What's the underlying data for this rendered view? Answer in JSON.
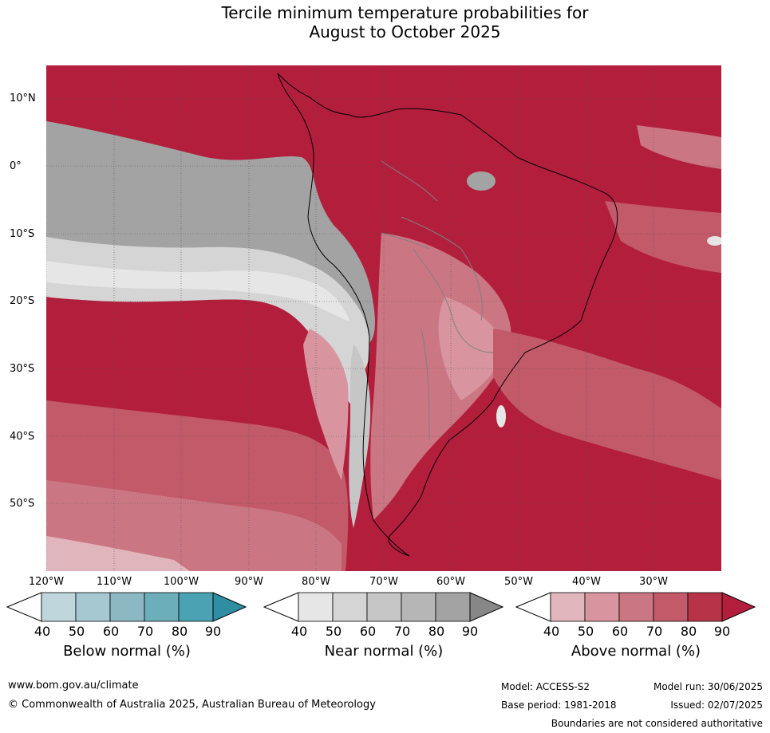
{
  "title_line1": "Tercile minimum temperature probabilities for",
  "title_line2": "August to October 2025",
  "map": {
    "lat_labels": [
      "10°N",
      "0°",
      "10°S",
      "20°S",
      "30°S",
      "40°S",
      "50°S"
    ],
    "lon_labels": [
      "120°W",
      "110°W",
      "100°W",
      "90°W",
      "80°W",
      "70°W",
      "60°W",
      "50°W",
      "40°W",
      "30°W"
    ],
    "legend_colors": {
      "below": [
        "#bed6dc",
        "#a6c8d0",
        "#8cb8c4",
        "#6daebb",
        "#4aa2b2",
        "#2e8fa3"
      ],
      "near": [
        "#e6e6e6",
        "#d5d5d5",
        "#c6c6c6",
        "#b6b6b6",
        "#a3a3a3",
        "#878787"
      ],
      "above": [
        "#e0b6bc",
        "#d8959f",
        "#cb7683",
        "#c25a6a",
        "#b73448",
        "#b31e3c"
      ]
    }
  },
  "colorbars": [
    {
      "key": "below",
      "title": "Below normal (%)",
      "ticks": [
        "40",
        "50",
        "60",
        "70",
        "80",
        "90"
      ]
    },
    {
      "key": "near",
      "title": "Near normal (%)",
      "ticks": [
        "40",
        "50",
        "60",
        "70",
        "80",
        "90"
      ]
    },
    {
      "key": "above",
      "title": "Above normal (%)",
      "ticks": [
        "40",
        "50",
        "60",
        "70",
        "80",
        "90"
      ]
    }
  ],
  "footer": {
    "website": "www.bom.gov.au/climate",
    "copyright": "© Commonwealth of Australia 2025, Australian Bureau of Meteorology",
    "model": "Model: ACCESS-S2",
    "base_period": "Base period: 1981-2018",
    "model_run": "Model run: 30/06/2025",
    "issued": "Issued: 02/07/2025",
    "disclaimer": "Boundaries are not considered authoritative"
  }
}
